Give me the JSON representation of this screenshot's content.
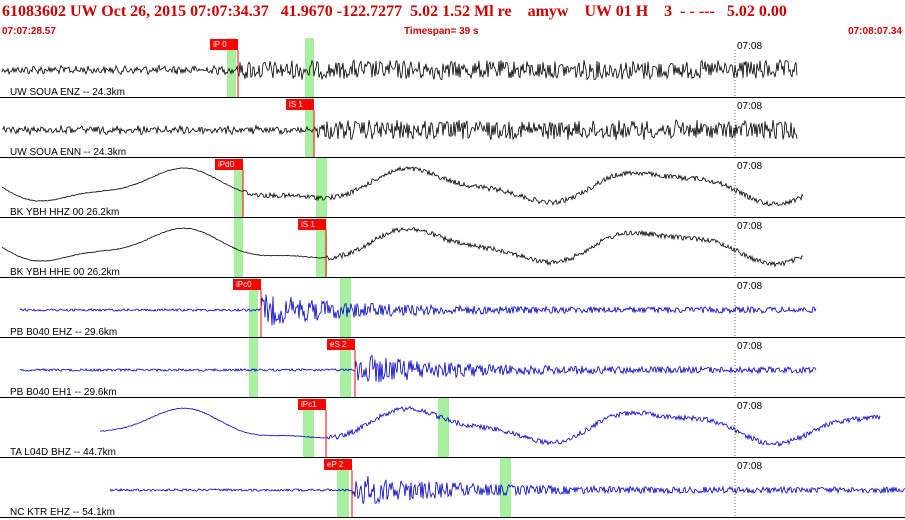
{
  "header": {
    "event_line": "61083602 UW Oct 26, 2015 07:07:34.37   41.9670 -122.7277  5.02 1.52 Ml re    amyw    UW 01 H    3  - - ---   5.02 0.00",
    "start_time": "07:07:28.57",
    "timespan": "Timespan=  39 s",
    "end_time": "07:08:07.34"
  },
  "colors": {
    "header_text": "#cc0000",
    "pick_box": "#ff0000",
    "pick_window": "#a8f0a0",
    "trace_black": "#000000",
    "trace_blue": "#0000cc",
    "grid": "#000000"
  },
  "time_axis": {
    "tick_label": "07:08"
  },
  "traces": [
    {
      "label": "UW SOUA ENZ -- 24.3km",
      "color": "black",
      "kind": "noise",
      "pick": "iP 0",
      "windows": [
        "green-1",
        "green-2"
      ]
    },
    {
      "label": "UW SOUA ENN -- 24.3km",
      "color": "black",
      "kind": "noise",
      "pick": "iS 1",
      "windows": [
        "green-1"
      ]
    },
    {
      "label": "BK YBH HHZ 00 26.2km",
      "color": "black",
      "kind": "wave",
      "pick": "iPd0",
      "windows": [
        "green-1",
        "green-2"
      ]
    },
    {
      "label": "BK YBH HHE 00 26.2km",
      "color": "black",
      "kind": "wave",
      "pick": "iS 1",
      "windows": [
        "green-1",
        "green-2"
      ]
    },
    {
      "label": "PB B040 EHZ -- 29.6km",
      "color": "blue",
      "kind": "quake",
      "pick": "iPc0",
      "windows": [
        "green-1",
        "green-2"
      ]
    },
    {
      "label": "PB B040 EH1 -- 29.6km",
      "color": "blue",
      "kind": "quake",
      "pick": "eS 2",
      "windows": [
        "green-1",
        "green-2"
      ]
    },
    {
      "label": "TA L04D BHZ -- 44.7km",
      "color": "blue",
      "kind": "wave",
      "pick": "iPc1",
      "windows": [
        "green-1",
        "green-2"
      ]
    },
    {
      "label": "NC KTR EHZ -- 54.1km",
      "color": "blue",
      "kind": "quake",
      "pick": "eP 2",
      "windows": [
        "green-1",
        "green-2"
      ]
    }
  ]
}
